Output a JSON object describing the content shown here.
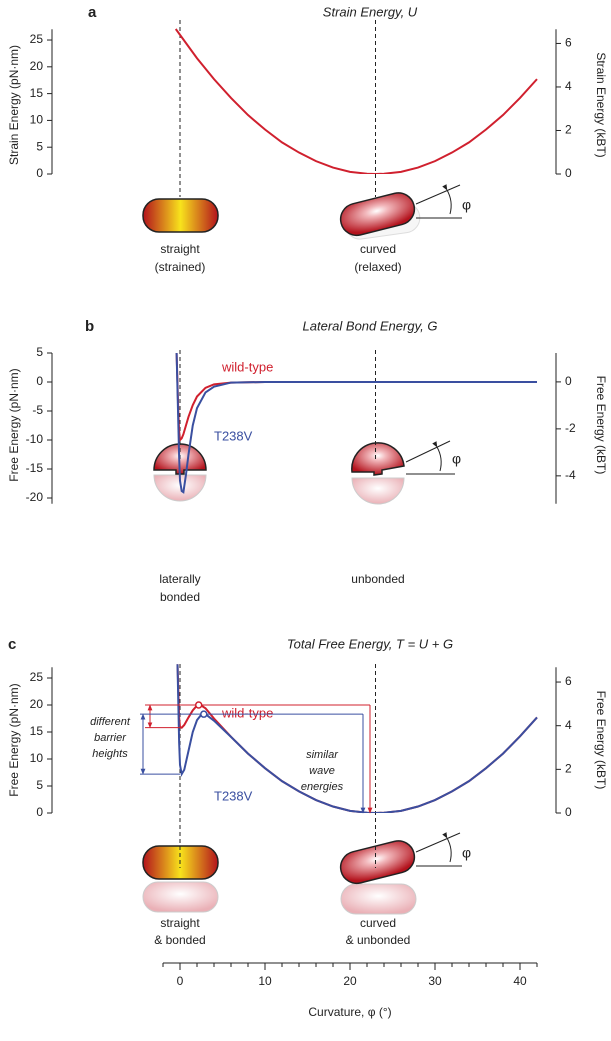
{
  "chart_data": [
    {
      "panel": "a",
      "type": "line",
      "title": "Strain Energy, U",
      "ylabel": "Strain Energy (pN·nm)",
      "y2label": "Strain Energy (kBT)",
      "xlim": [
        -2,
        42
      ],
      "ylim": [
        0,
        27
      ],
      "yticks": [
        0,
        5,
        10,
        15,
        20,
        25
      ],
      "y2lim": [
        0,
        6.65
      ],
      "y2ticks": [
        0,
        2,
        4,
        6
      ],
      "reference_lines": [
        0,
        23
      ],
      "x": [
        -0.5,
        2,
        4,
        6,
        8,
        10,
        12,
        14,
        16,
        18,
        20,
        22,
        23,
        24,
        26,
        28,
        30,
        32,
        34,
        36,
        38,
        40,
        42
      ],
      "values": [
        27.06,
        21.6,
        17.7,
        14.2,
        11.0,
        8.3,
        5.9,
        4.0,
        2.4,
        1.2,
        0.4,
        0.05,
        0,
        0.05,
        0.4,
        1.2,
        2.4,
        4.0,
        5.9,
        8.3,
        11.0,
        14.2,
        17.7
      ],
      "color": "#d0202e",
      "labels": [
        [
          "straight",
          "(strained)"
        ],
        [
          "curved",
          "(relaxed)"
        ]
      ],
      "angle_label": "φ"
    },
    {
      "panel": "b",
      "type": "line",
      "title": "Lateral Bond Energy, G",
      "ylabel": "Free Energy (pN·nm)",
      "y2label": "Free Energy (kBT)",
      "xlim": [
        -2,
        42
      ],
      "ylim": [
        -21,
        5
      ],
      "yticks": [
        -20,
        -15,
        -10,
        -5,
        0,
        5
      ],
      "y2lim": [
        -5.19,
        1.23
      ],
      "y2ticks": [
        -4,
        -2,
        0
      ],
      "reference_lines": [
        0,
        23
      ],
      "x": [
        -0.4,
        -0.3,
        -0.2,
        -0.1,
        0,
        0.2,
        0.4,
        0.7,
        1,
        1.5,
        2,
        3,
        4,
        6,
        10,
        20,
        30,
        42
      ],
      "series": [
        {
          "name": "wild-type",
          "color": "#d0202e",
          "values": [
            5,
            0,
            -5,
            -8.5,
            -10,
            -9.7,
            -9,
            -7.5,
            -6,
            -4,
            -2.5,
            -1,
            -0.4,
            -0.1,
            0,
            0,
            0,
            0
          ]
        },
        {
          "name": "T238V",
          "color": "#3a4fa0",
          "values": [
            5,
            -1,
            -7,
            -13,
            -17,
            -18.8,
            -19,
            -16,
            -12.5,
            -7.5,
            -4.5,
            -1.8,
            -0.8,
            -0.1,
            0,
            0,
            0,
            0
          ]
        }
      ],
      "labels": [
        [
          "laterally",
          "bonded"
        ],
        [
          "unbonded"
        ]
      ],
      "angle_label": "φ"
    },
    {
      "panel": "c",
      "type": "line",
      "title": "Total Free Energy, T = U + G",
      "ylabel": "Free Energy (pN·nm)",
      "y2label": "Free Energy (kBT)",
      "xlabel": "Curvature, φ (°)",
      "xlim": [
        -2,
        42
      ],
      "xticks": [
        0,
        10,
        20,
        30,
        40
      ],
      "xminorticks": [
        -2,
        2,
        4,
        6,
        8,
        12,
        14,
        16,
        18,
        22,
        24,
        26,
        28,
        32,
        34,
        36,
        38,
        42
      ],
      "ylim": [
        0,
        27
      ],
      "yticks": [
        0,
        5,
        10,
        15,
        20,
        25
      ],
      "y2lim": [
        0,
        6.68
      ],
      "y2ticks": [
        0,
        2,
        4,
        6
      ],
      "reference_lines": [
        0,
        23
      ],
      "x": [
        -0.3,
        -0.1,
        0,
        0.2,
        0.5,
        1,
        1.5,
        2,
        2.5,
        3,
        4,
        6,
        8,
        10,
        12,
        14,
        16,
        18,
        20,
        22,
        23,
        24,
        26,
        28,
        30,
        32,
        34,
        36,
        38,
        40,
        42
      ],
      "series": [
        {
          "name": "wild-type",
          "color": "#d0202e",
          "values": [
            28,
            17.6,
            15.9,
            15.8,
            16.3,
            17.7,
            19,
            19.9,
            19.9,
            19.4,
            17.5,
            14.1,
            11,
            8.3,
            5.9,
            4,
            2.4,
            1.2,
            0.4,
            0.05,
            0,
            0.05,
            0.4,
            1.2,
            2.4,
            4,
            5.9,
            8.3,
            11,
            14.2,
            17.7
          ],
          "peak": {
            "x": 2.2,
            "y": 20
          }
        },
        {
          "name": "T238V",
          "color": "#3a4fa0",
          "values": [
            28,
            13,
            8.9,
            7.2,
            8,
            11.5,
            15,
            17.2,
            18.2,
            18.3,
            17.1,
            14.1,
            11,
            8.3,
            5.9,
            4,
            2.4,
            1.2,
            0.4,
            0.05,
            0,
            0.05,
            0.4,
            1.2,
            2.4,
            4,
            5.9,
            8.3,
            11,
            14.2,
            17.7
          ],
          "peak": {
            "x": 2.8,
            "y": 18.3
          }
        }
      ],
      "annotations": [
        [
          "different",
          "barrier",
          "heights"
        ],
        [
          "similar",
          "wave",
          "energies"
        ]
      ],
      "labels": [
        [
          "straight",
          "& bonded"
        ],
        [
          "curved",
          "& unbonded"
        ]
      ],
      "angle_label": "φ"
    }
  ]
}
